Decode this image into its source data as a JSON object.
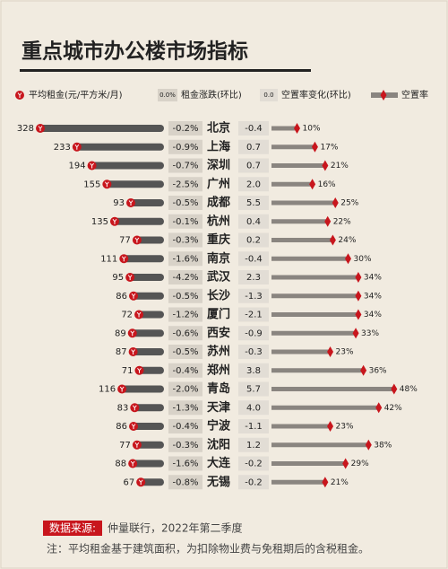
{
  "chart_data": {
    "type": "bar",
    "title": "重点城市办公楼市场指标",
    "categories": [
      "北京",
      "上海",
      "深圳",
      "广州",
      "成都",
      "杭州",
      "重庆",
      "南京",
      "武汉",
      "长沙",
      "厦门",
      "西安",
      "苏州",
      "郑州",
      "青岛",
      "天津",
      "宁波",
      "沈阳",
      "大连",
      "无锡"
    ],
    "series": [
      {
        "name": "平均租金(元/平方米/月)",
        "color": "#555555",
        "values": [
          328,
          233,
          194,
          155,
          93,
          135,
          77,
          111,
          95,
          86,
          72,
          89,
          87,
          71,
          116,
          83,
          86,
          77,
          88,
          67
        ]
      },
      {
        "name": "租金涨跌(环比)",
        "legend_sample": "0.0%",
        "color": "#d8d2c8",
        "values": [
          -0.2,
          -0.9,
          -0.7,
          -2.5,
          -0.5,
          -0.1,
          -0.3,
          -1.6,
          -4.2,
          -0.5,
          -1.2,
          -0.6,
          -0.5,
          -0.4,
          -2.0,
          -1.3,
          -0.4,
          -0.3,
          -1.6,
          -0.8
        ],
        "value_labels": [
          "-0.2%",
          "-0.9%",
          "-0.7%",
          "-2.5%",
          "-0.5%",
          "-0.1%",
          "-0.3%",
          "-1.6%",
          "-4.2%",
          "-0.5%",
          "-1.2%",
          "-0.6%",
          "-0.5%",
          "-0.4%",
          "-2.0%",
          "-1.3%",
          "-0.4%",
          "-0.3%",
          "-1.6%",
          "-0.8%"
        ]
      },
      {
        "name": "空置率变化(环比)",
        "legend_sample": "0.0",
        "color": "#e2ddd5",
        "values": [
          -0.4,
          0.7,
          0.7,
          2.0,
          5.5,
          0.4,
          0.2,
          -0.4,
          2.3,
          -1.3,
          -2.1,
          -0.9,
          -0.3,
          3.8,
          5.7,
          4.0,
          -1.1,
          1.2,
          -0.2,
          -0.2
        ],
        "value_labels": [
          "-0.4",
          "0.7",
          "0.7",
          "2.0",
          "5.5",
          "0.4",
          "0.2",
          "-0.4",
          "2.3",
          "-1.3",
          "-2.1",
          "-0.9",
          "-0.3",
          "3.8",
          "5.7",
          "4.0",
          "-1.1",
          "1.2",
          "-0.2",
          "-0.2"
        ]
      },
      {
        "name": "空置率",
        "color": "#8a8580",
        "marker_color": "#c8161d",
        "values": [
          10,
          17,
          21,
          16,
          25,
          22,
          24,
          30,
          34,
          34,
          34,
          33,
          23,
          36,
          48,
          42,
          23,
          38,
          29,
          21
        ],
        "value_labels": [
          "10%",
          "17%",
          "21%",
          "16%",
          "25%",
          "22%",
          "24%",
          "30%",
          "34%",
          "34%",
          "34%",
          "33%",
          "23%",
          "36%",
          "48%",
          "42%",
          "23%",
          "38%",
          "29%",
          "21%"
        ]
      }
    ],
    "source_label": "数据来源:",
    "source": "仲量联行，2022年第二季度",
    "note": "注：平均租金基于建筑面积，为扣除物业费与免租期后的含税租金。"
  }
}
